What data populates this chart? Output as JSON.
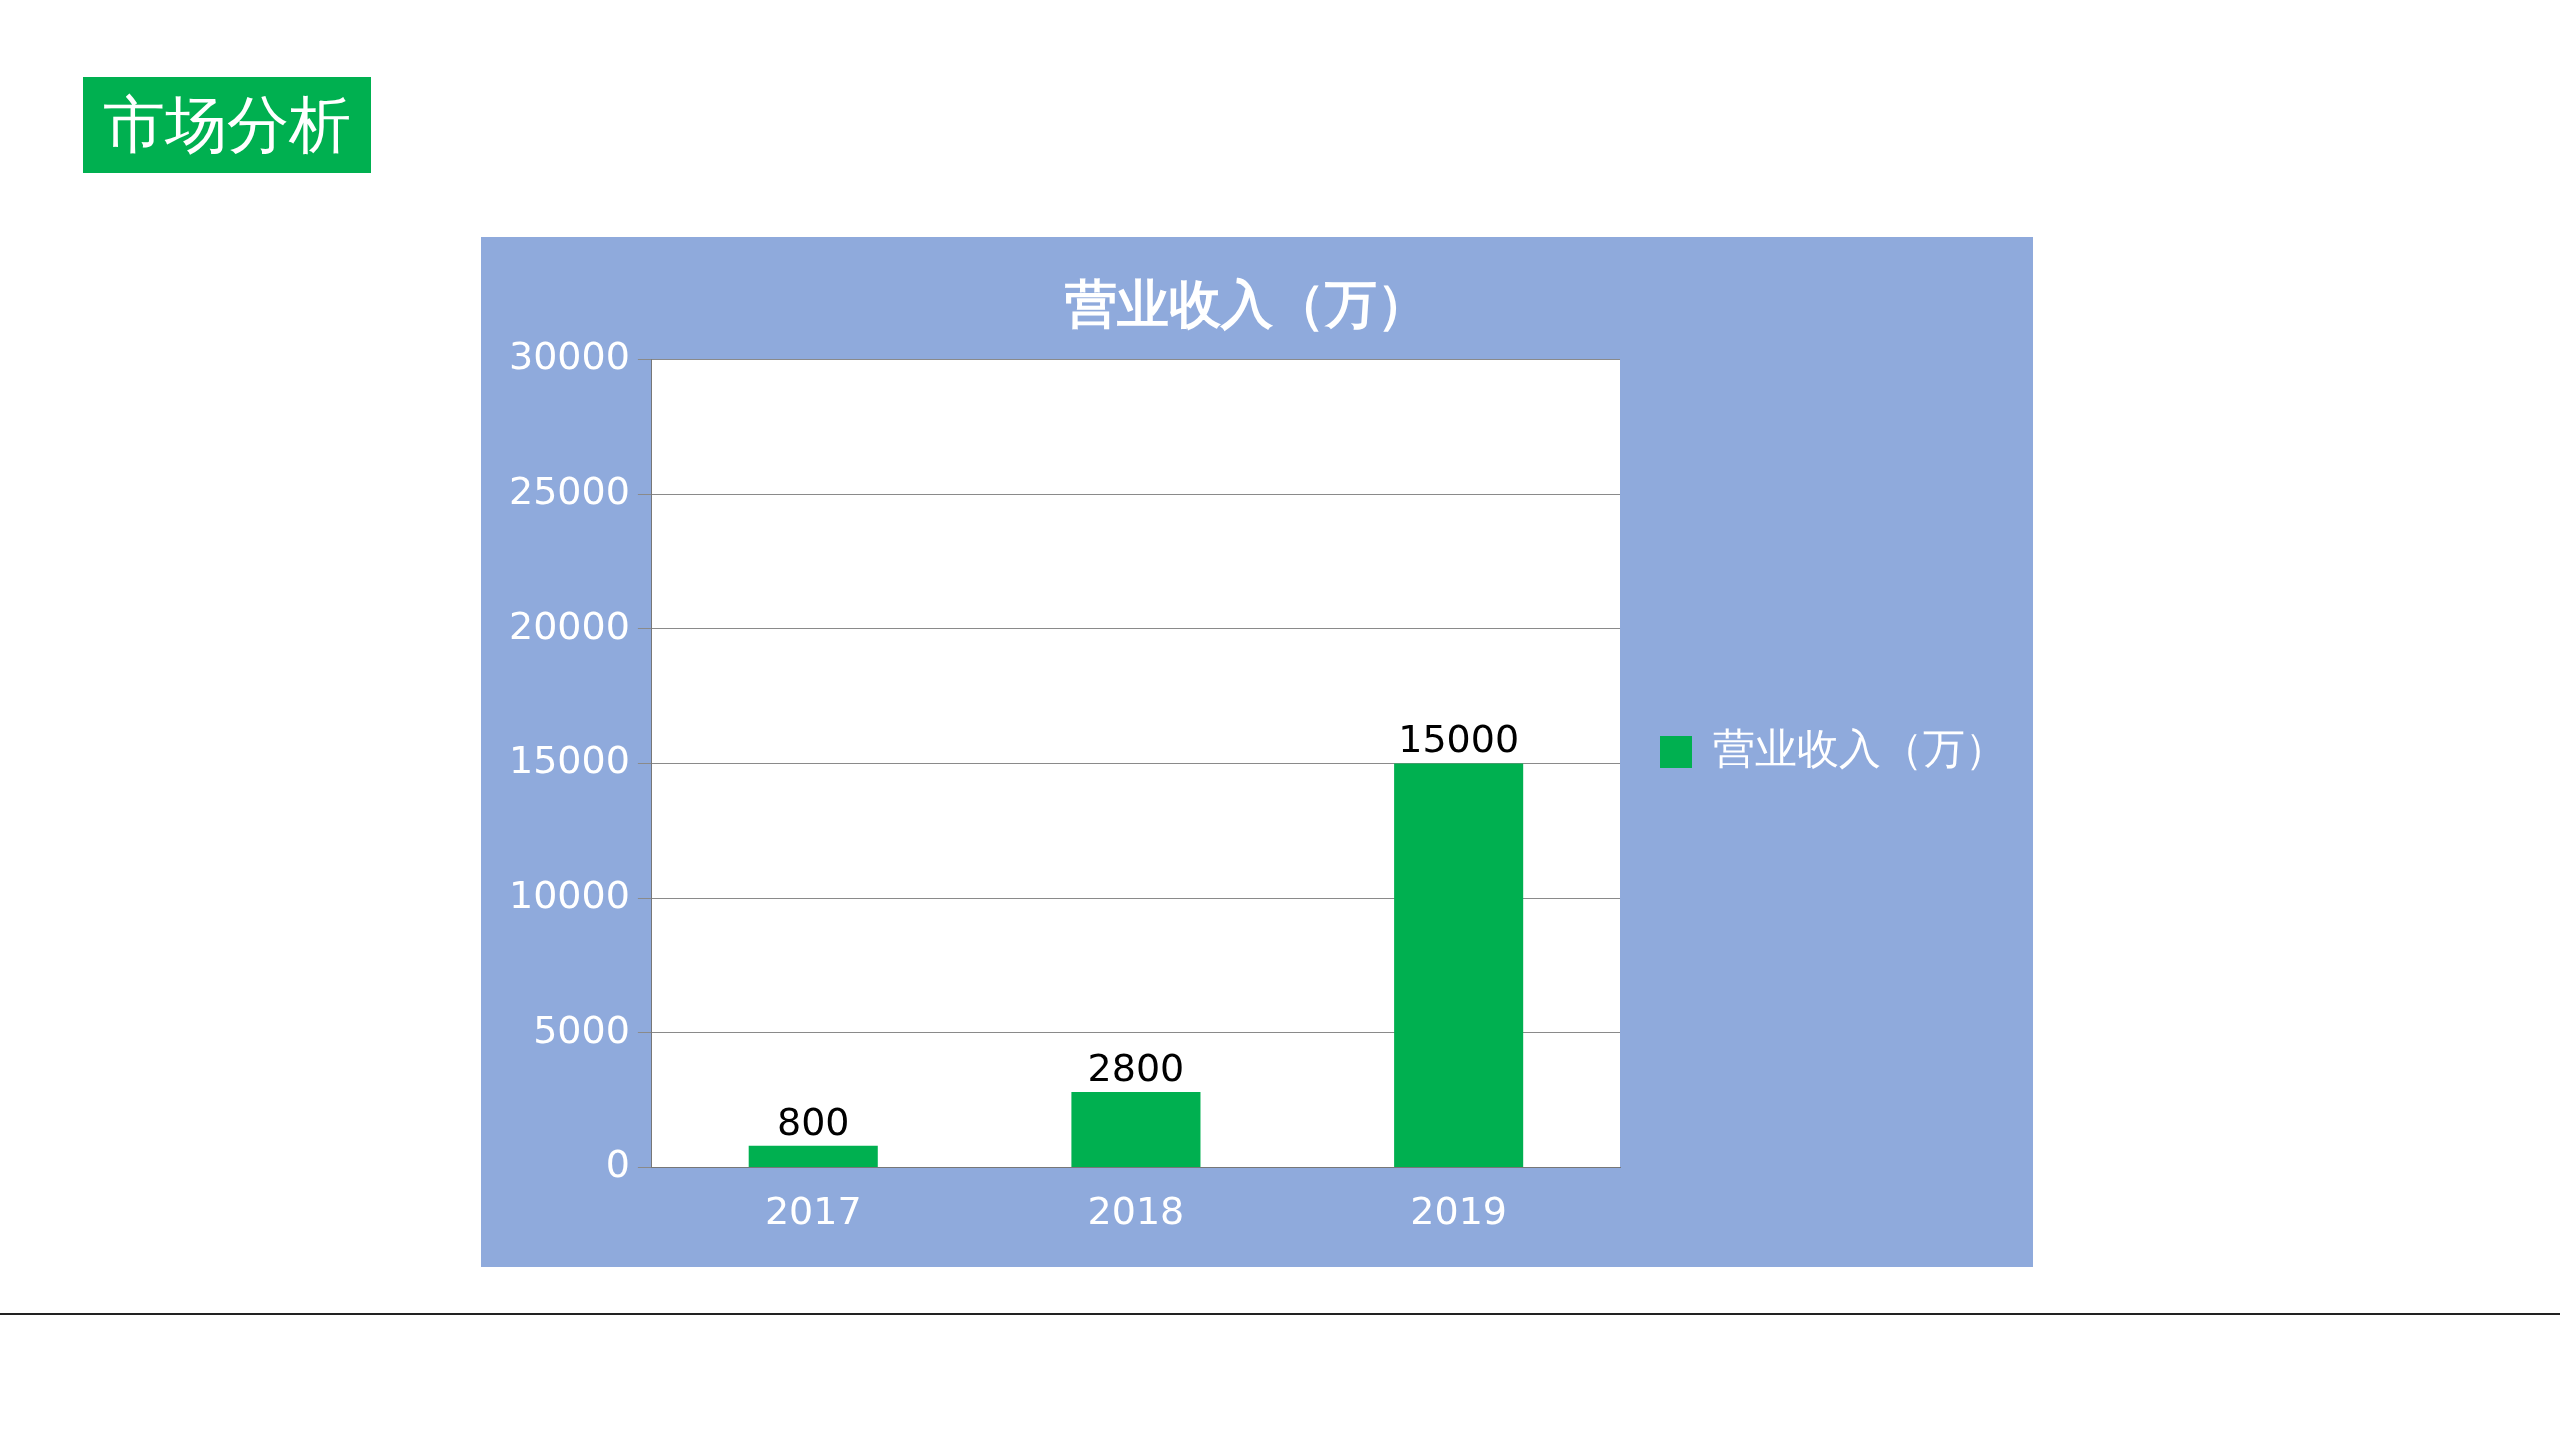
{
  "chart_data": {
    "type": "bar",
    "title": "营业收入（万）",
    "annotations": [
      "市场分析"
    ],
    "categories": [
      "2017",
      "2018",
      "2019"
    ],
    "series": [
      {
        "name": "营业收入（万）",
        "color": "#00b050",
        "values": [
          800,
          2800,
          15000
        ]
      }
    ],
    "data_labels": true,
    "ylim": [
      0,
      30000
    ],
    "yticks": [
      0,
      5000,
      10000,
      15000,
      20000,
      25000,
      30000
    ],
    "grid": "y",
    "legend": "right"
  }
}
